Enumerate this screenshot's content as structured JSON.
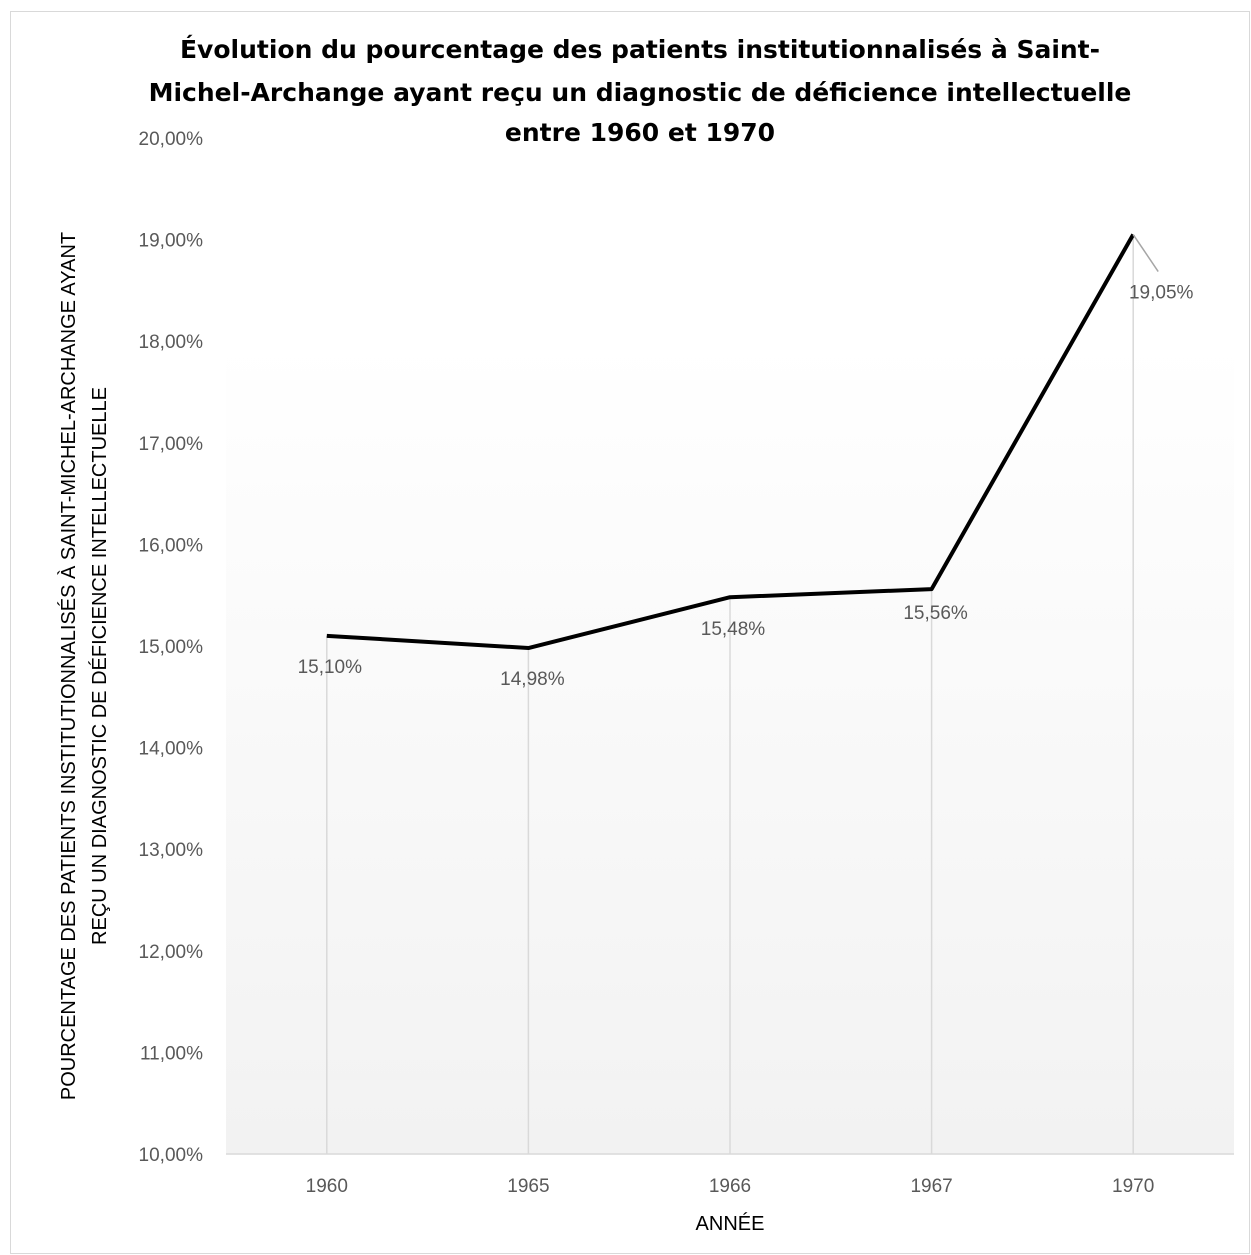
{
  "chart_data": {
    "type": "line",
    "title_lines": [
      "Évolution du pourcentage des patients institutionnalisés à Saint-",
      "Michel-Archange ayant reçu un diagnostic de déficience intellectuelle",
      "entre 1960 et 1970"
    ],
    "xlabel": "ANNÉE",
    "ylabel_lines": [
      "POURCENTAGE DES PATIENTS INSTITUTIONNALISÉS À SAINT-MICHEL-ARCHANGE AYANT",
      "REÇU UN DIAGNOSTIC DE DÉFICIENCE INTELLECTUELLE"
    ],
    "categories": [
      "1960",
      "1965",
      "1966",
      "1967",
      "1970"
    ],
    "values": [
      15.1,
      14.98,
      15.48,
      15.56,
      19.05
    ],
    "data_labels": [
      "15,10%",
      "14,98%",
      "15,48%",
      "15,56%",
      "19,05%"
    ],
    "ylim": [
      10,
      20
    ],
    "yticks": [
      10,
      11,
      12,
      13,
      14,
      15,
      16,
      17,
      18,
      19,
      20
    ],
    "ytick_labels": [
      "10,00%",
      "11,00%",
      "12,00%",
      "13,00%",
      "14,00%",
      "15,00%",
      "16,00%",
      "17,00%",
      "18,00%",
      "19,00%",
      "20,00%"
    ],
    "horizontal_grid": false,
    "drop_lines": true,
    "line_color": "#000000",
    "drop_line_color": "#d9d9d9",
    "background_gradient": [
      "#ffffff",
      "#f2f2f2"
    ],
    "legend": "none"
  }
}
